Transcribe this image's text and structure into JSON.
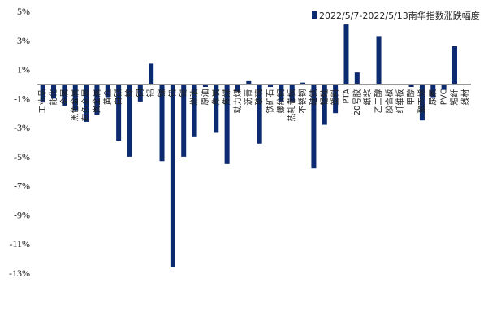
{
  "chart_data": {
    "type": "bar",
    "legend": {
      "label": "2022/5/7-2022/5/13南华指数涨跌幅度",
      "placement": "top-right"
    },
    "color": "#0b2a6f",
    "ylim": [
      -13,
      5
    ],
    "yticks": [
      "5%",
      "3%",
      "1%",
      "-1%",
      "-3%",
      "-5%",
      "-7%",
      "-9%",
      "-11%",
      "-13%"
    ],
    "ytick_values": [
      5,
      3,
      1,
      -1,
      -3,
      -5,
      -7,
      -9,
      -11,
      -13
    ],
    "grid": false,
    "categories": [
      "工业品",
      "能化",
      "金属",
      "黑色金属",
      "有色金属",
      "贵金属",
      "黄金",
      "白银",
      "锌",
      "铜",
      "铝",
      "镍",
      "铅",
      "锡",
      "燃油",
      "原油",
      "焦炭",
      "焦煤",
      "动力煤",
      "沥青",
      "玻璃",
      "铁矿石",
      "螺纹钢",
      "热轧卷板",
      "不锈钢",
      "硅铁",
      "锰硅",
      "塑料",
      "PTA",
      "20号胶",
      "纸浆",
      "乙二醇",
      "胶合板",
      "纤维板",
      "甲醇",
      "聚丙烯",
      "尿素",
      "PVC",
      "短纤",
      "线材"
    ],
    "values": [
      -1.2,
      -1.0,
      -1.5,
      -1.8,
      -2.6,
      -2.1,
      -0.9,
      -3.9,
      -5.0,
      -1.2,
      1.4,
      -5.3,
      -12.6,
      -5.0,
      -3.6,
      -0.2,
      -3.3,
      -5.5,
      -0.5,
      0.2,
      -4.1,
      -0.2,
      -1.2,
      -1.2,
      0.1,
      -5.8,
      -2.8,
      -2.0,
      4.1,
      0.8,
      0.0,
      3.3,
      0.0,
      0.0,
      -0.2,
      -2.5,
      -0.9,
      -0.4,
      2.6,
      0.0
    ]
  }
}
